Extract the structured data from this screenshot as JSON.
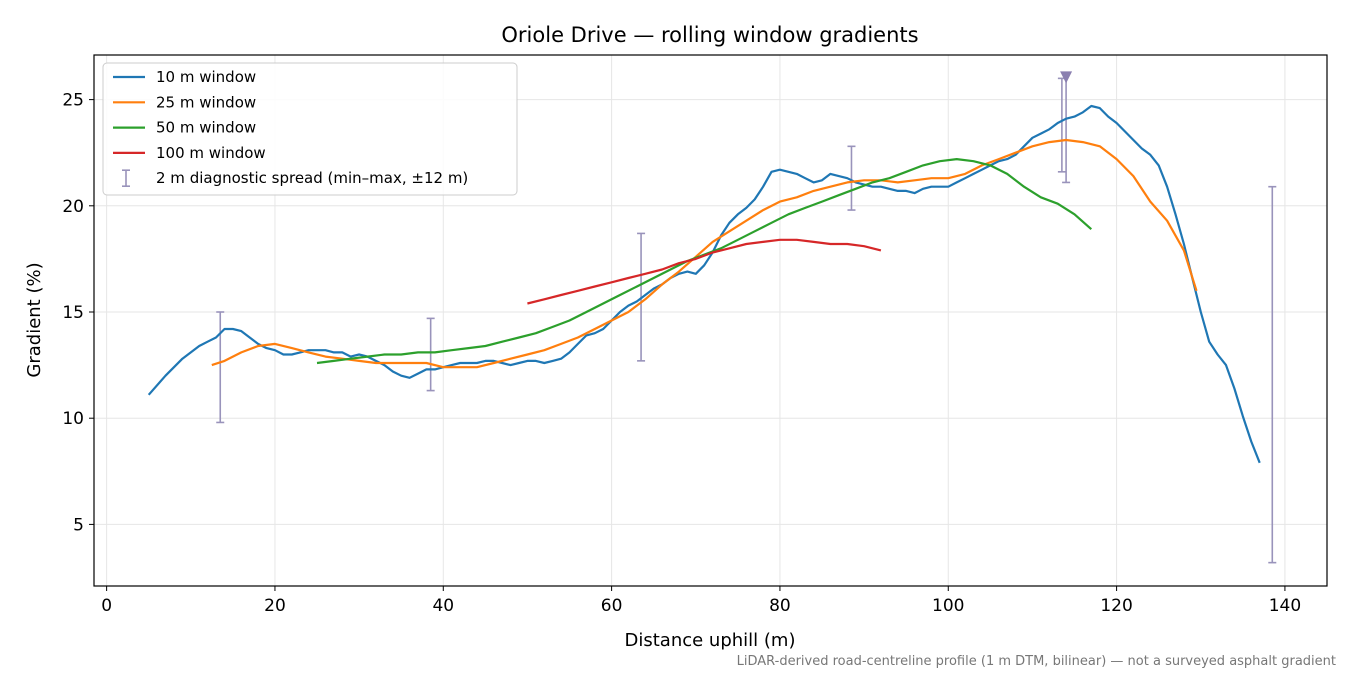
{
  "chart_data": {
    "type": "line",
    "title": "Oriole Drive — rolling window gradients",
    "xlabel": "Distance uphill (m)",
    "ylabel": "Gradient (%)",
    "xlim": [
      -1.5,
      145
    ],
    "ylim": [
      2.1,
      27.1
    ],
    "xticks": [
      0,
      20,
      40,
      60,
      80,
      100,
      120,
      140
    ],
    "yticks": [
      5,
      10,
      15,
      20,
      25
    ],
    "grid": true,
    "legend_position": "top-left",
    "footnote": "LiDAR-derived road-centreline profile (1 m DTM, bilinear) — not a surveyed asphalt gradient",
    "series": [
      {
        "name": "10 m window",
        "color": "#1f77b4",
        "x": [
          5,
          7,
          9,
          11,
          12,
          13,
          14,
          15,
          16,
          17,
          18,
          19,
          20,
          21,
          22,
          23,
          24,
          25,
          26,
          27,
          28,
          29,
          30,
          31,
          32,
          33,
          34,
          35,
          36,
          37,
          38,
          39,
          40,
          41,
          42,
          43,
          44,
          45,
          46,
          47,
          48,
          49,
          50,
          51,
          52,
          53,
          54,
          55,
          56,
          57,
          58,
          59,
          60,
          61,
          62,
          63,
          64,
          65,
          66,
          67,
          68,
          69,
          70,
          71,
          72,
          73,
          74,
          75,
          76,
          77,
          78,
          79,
          80,
          81,
          82,
          83,
          84,
          85,
          86,
          87,
          88,
          89,
          90,
          91,
          92,
          93,
          94,
          95,
          96,
          97,
          98,
          99,
          100,
          101,
          102,
          103,
          104,
          105,
          106,
          107,
          108,
          109,
          110,
          111,
          112,
          113,
          114,
          115,
          116,
          117,
          118,
          119,
          120,
          121,
          122,
          123,
          124,
          125,
          126,
          127,
          128,
          129,
          130,
          131,
          132,
          133,
          134,
          135,
          136,
          137
        ],
        "values": [
          11.1,
          12.0,
          12.8,
          13.4,
          13.6,
          13.8,
          14.2,
          14.2,
          14.1,
          13.8,
          13.5,
          13.3,
          13.2,
          13.0,
          13.0,
          13.1,
          13.2,
          13.2,
          13.2,
          13.1,
          13.1,
          12.9,
          13.0,
          12.9,
          12.7,
          12.5,
          12.2,
          12.0,
          11.9,
          12.1,
          12.3,
          12.3,
          12.4,
          12.5,
          12.6,
          12.6,
          12.6,
          12.7,
          12.7,
          12.6,
          12.5,
          12.6,
          12.7,
          12.7,
          12.6,
          12.7,
          12.8,
          13.1,
          13.5,
          13.9,
          14.0,
          14.2,
          14.6,
          15.0,
          15.3,
          15.5,
          15.8,
          16.1,
          16.3,
          16.6,
          16.8,
          16.9,
          16.8,
          17.2,
          17.8,
          18.6,
          19.2,
          19.6,
          19.9,
          20.3,
          20.9,
          21.6,
          21.7,
          21.6,
          21.5,
          21.3,
          21.1,
          21.2,
          21.5,
          21.4,
          21.3,
          21.1,
          21.0,
          20.9,
          20.9,
          20.8,
          20.7,
          20.7,
          20.6,
          20.8,
          20.9,
          20.9,
          20.9,
          21.1,
          21.3,
          21.5,
          21.7,
          21.9,
          22.1,
          22.2,
          22.4,
          22.8,
          23.2,
          23.4,
          23.6,
          23.9,
          24.1,
          24.2,
          24.4,
          24.7,
          24.6,
          24.2,
          23.9,
          23.5,
          23.1,
          22.7,
          22.4,
          21.9,
          20.9,
          19.6,
          18.2,
          16.6,
          15.0,
          13.6,
          13.0,
          12.5,
          11.4,
          10.1,
          8.9,
          7.9
        ]
      },
      {
        "name": "25 m window",
        "color": "#ff7f0e",
        "x": [
          12.5,
          14,
          16,
          18,
          20,
          22,
          24,
          26,
          28,
          30,
          32,
          34,
          36,
          38,
          40,
          42,
          44,
          46,
          48,
          50,
          52,
          54,
          56,
          58,
          60,
          62,
          64,
          66,
          68,
          70,
          72,
          74,
          76,
          78,
          80,
          82,
          84,
          86,
          88,
          90,
          92,
          94,
          96,
          98,
          100,
          102,
          104,
          106,
          108,
          110,
          112,
          114,
          116,
          118,
          120,
          122,
          124,
          126,
          128,
          129.5
        ],
        "values": [
          12.5,
          12.7,
          13.1,
          13.4,
          13.5,
          13.3,
          13.1,
          12.9,
          12.8,
          12.7,
          12.6,
          12.6,
          12.6,
          12.6,
          12.4,
          12.4,
          12.4,
          12.6,
          12.8,
          13.0,
          13.2,
          13.5,
          13.8,
          14.2,
          14.6,
          15.0,
          15.6,
          16.3,
          16.9,
          17.6,
          18.3,
          18.8,
          19.3,
          19.8,
          20.2,
          20.4,
          20.7,
          20.9,
          21.1,
          21.2,
          21.2,
          21.1,
          21.2,
          21.3,
          21.3,
          21.5,
          21.9,
          22.2,
          22.5,
          22.8,
          23.0,
          23.1,
          23.0,
          22.8,
          22.2,
          21.4,
          20.2,
          19.3,
          17.9,
          16.0
        ]
      },
      {
        "name": "50 m window",
        "color": "#2ca02c",
        "x": [
          25,
          27,
          29,
          31,
          33,
          35,
          37,
          39,
          41,
          43,
          45,
          47,
          49,
          51,
          53,
          55,
          57,
          59,
          61,
          63,
          65,
          67,
          69,
          71,
          73,
          75,
          77,
          79,
          81,
          83,
          85,
          87,
          89,
          91,
          93,
          95,
          97,
          99,
          101,
          103,
          105,
          107,
          109,
          111,
          113,
          115,
          117
        ],
        "values": [
          12.6,
          12.7,
          12.8,
          12.9,
          13.0,
          13.0,
          13.1,
          13.1,
          13.2,
          13.3,
          13.4,
          13.6,
          13.8,
          14.0,
          14.3,
          14.6,
          15.0,
          15.4,
          15.8,
          16.2,
          16.6,
          17.0,
          17.4,
          17.7,
          18.0,
          18.4,
          18.8,
          19.2,
          19.6,
          19.9,
          20.2,
          20.5,
          20.8,
          21.1,
          21.3,
          21.6,
          21.9,
          22.1,
          22.2,
          22.1,
          21.9,
          21.5,
          20.9,
          20.4,
          20.1,
          19.6,
          18.9
        ]
      },
      {
        "name": "100 m window",
        "color": "#d62728",
        "x": [
          50,
          52,
          54,
          56,
          58,
          60,
          62,
          64,
          66,
          68,
          70,
          72,
          74,
          76,
          78,
          80,
          82,
          84,
          86,
          88,
          90,
          92
        ],
        "values": [
          15.4,
          15.6,
          15.8,
          16.0,
          16.2,
          16.4,
          16.6,
          16.8,
          17.0,
          17.3,
          17.5,
          17.8,
          18.0,
          18.2,
          18.3,
          18.4,
          18.4,
          18.3,
          18.2,
          18.2,
          18.1,
          17.9
        ]
      }
    ],
    "errorbars": {
      "name": "2 m diagnostic spread (min–max, ±12 m)",
      "color": "#9993bb",
      "points": [
        {
          "x": 13.5,
          "low": 9.8,
          "high": 15.0
        },
        {
          "x": 38.5,
          "low": 11.3,
          "high": 14.7
        },
        {
          "x": 63.5,
          "low": 12.7,
          "high": 18.7
        },
        {
          "x": 88.5,
          "low": 19.8,
          "high": 22.8
        },
        {
          "x": 113.5,
          "low": 21.6,
          "high": 26.0
        },
        {
          "x": 114,
          "low": 21.1,
          "high": 26.2
        },
        {
          "x": 138.5,
          "low": 3.2,
          "high": 20.9
        }
      ],
      "clipped_marker": {
        "x": 114,
        "y": 26.0
      }
    }
  }
}
